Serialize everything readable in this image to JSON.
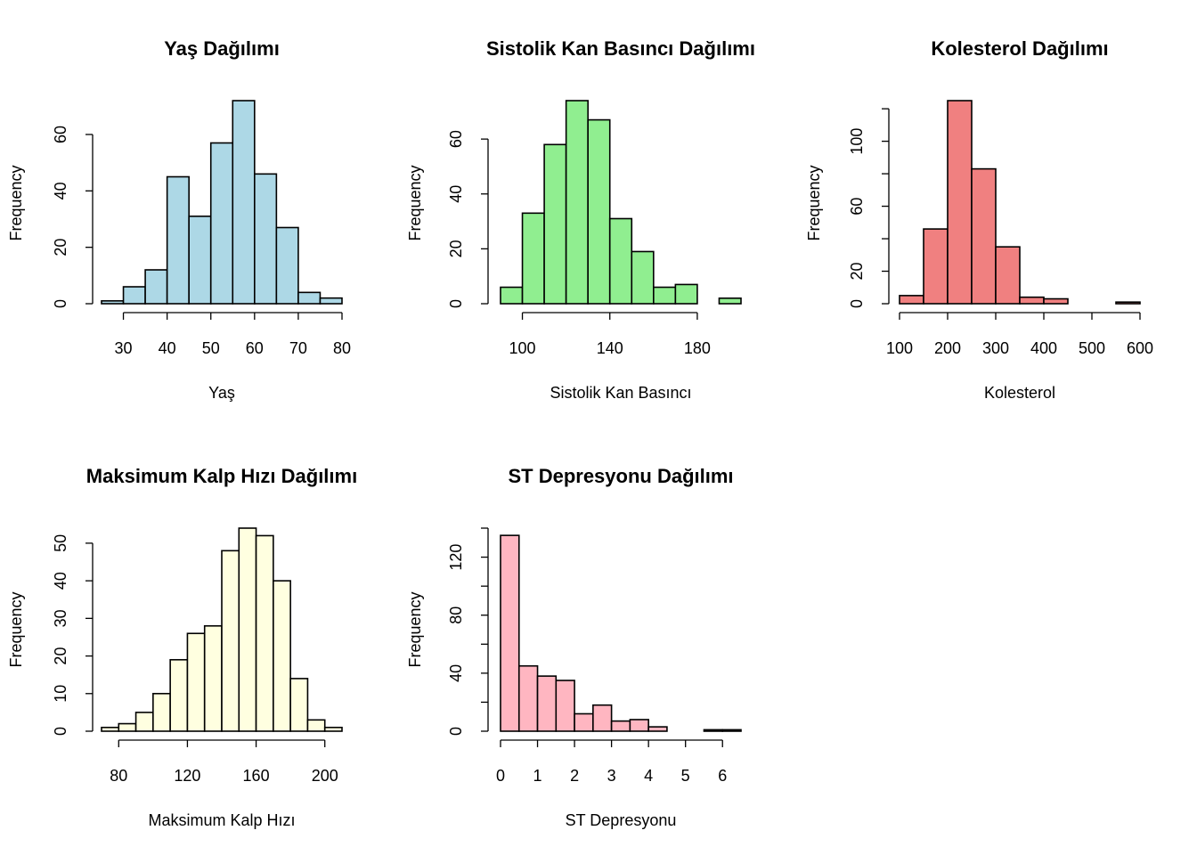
{
  "chart_data": [
    {
      "type": "histogram",
      "title": "Yaş Dağılımı",
      "xlabel": "Yaş",
      "ylabel": "Frequency",
      "fill_color": "#add8e6",
      "bin_edges": [
        25,
        30,
        35,
        40,
        45,
        50,
        55,
        60,
        65,
        70,
        75,
        80
      ],
      "values": [
        1,
        6,
        12,
        45,
        31,
        57,
        72,
        46,
        27,
        4,
        2
      ],
      "xticks": [
        30,
        40,
        50,
        60,
        70,
        80
      ],
      "xlim": [
        25,
        80
      ],
      "yticks": [
        0,
        20,
        40,
        60
      ],
      "ylim": [
        0,
        72
      ]
    },
    {
      "type": "histogram",
      "title": "Sistolik Kan Basıncı Dağılımı",
      "xlabel": "Sistolik Kan Basıncı",
      "ylabel": "Frequency",
      "fill_color": "#90ee90",
      "bin_edges": [
        90,
        100,
        110,
        120,
        130,
        140,
        150,
        160,
        170,
        180,
        190,
        200
      ],
      "values": [
        6,
        33,
        58,
        74,
        67,
        31,
        19,
        6,
        7,
        0,
        2
      ],
      "xticks": [
        100,
        140,
        180
      ],
      "xlim": [
        90,
        200
      ],
      "yticks": [
        0,
        20,
        40,
        60
      ],
      "ylim": [
        0,
        74
      ]
    },
    {
      "type": "histogram",
      "title": "Kolesterol Dağılımı",
      "xlabel": "Kolesterol",
      "ylabel": "Frequency",
      "fill_color": "#f08080",
      "bin_edges": [
        100,
        150,
        200,
        250,
        300,
        350,
        400,
        450,
        500,
        550,
        600
      ],
      "values": [
        5,
        46,
        125,
        83,
        35,
        4,
        3,
        0,
        0,
        1
      ],
      "xticks": [
        100,
        200,
        300,
        400,
        500,
        600
      ],
      "xlim": [
        100,
        600
      ],
      "yticks": [
        0,
        20,
        40,
        60,
        80,
        100,
        120
      ],
      "ytick_labels": [
        "0",
        "20",
        "",
        "60",
        "",
        "100",
        ""
      ],
      "ylim": [
        0,
        125
      ]
    },
    {
      "type": "histogram",
      "title": "Maksimum Kalp Hızı Dağılımı",
      "xlabel": "Maksimum Kalp Hızı",
      "ylabel": "Frequency",
      "fill_color": "#ffffe0",
      "bin_edges": [
        70,
        80,
        90,
        100,
        110,
        120,
        130,
        140,
        150,
        160,
        170,
        180,
        190,
        200,
        210
      ],
      "values": [
        1,
        2,
        5,
        10,
        19,
        26,
        28,
        48,
        54,
        52,
        40,
        14,
        3,
        1
      ],
      "xticks": [
        80,
        120,
        160,
        200
      ],
      "xlim": [
        70,
        210
      ],
      "yticks": [
        0,
        10,
        20,
        30,
        40,
        50
      ],
      "ylim": [
        0,
        54
      ]
    },
    {
      "type": "histogram",
      "title": "ST Depresyonu Dağılımı",
      "xlabel": "ST Depresyonu",
      "ylabel": "Frequency",
      "fill_color": "#ffb6c1",
      "bin_edges": [
        0,
        0.5,
        1,
        1.5,
        2,
        2.5,
        3,
        3.5,
        4,
        4.5,
        5,
        5.5,
        6,
        6.5
      ],
      "values": [
        135,
        45,
        38,
        35,
        12,
        18,
        7,
        8,
        3,
        0,
        0,
        1,
        1
      ],
      "xticks": [
        0,
        1,
        2,
        3,
        4,
        5,
        6
      ],
      "xlim": [
        0,
        6.5
      ],
      "yticks": [
        0,
        20,
        40,
        60,
        80,
        100,
        120,
        140
      ],
      "ytick_labels": [
        "0",
        "",
        "40",
        "",
        "80",
        "",
        "120",
        ""
      ],
      "ylim": [
        0,
        140
      ]
    }
  ]
}
